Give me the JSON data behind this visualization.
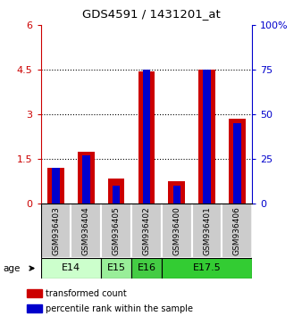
{
  "title": "GDS4591 / 1431201_at",
  "samples": [
    "GSM936403",
    "GSM936404",
    "GSM936405",
    "GSM936402",
    "GSM936400",
    "GSM936401",
    "GSM936406"
  ],
  "transformed_count": [
    1.2,
    1.75,
    0.85,
    4.45,
    0.75,
    4.5,
    2.85
  ],
  "percentile_rank_pct": [
    20,
    27,
    10,
    75,
    10,
    75,
    45
  ],
  "age_labels": [
    {
      "label": "E14",
      "start": 0,
      "end": 2,
      "color": "#ccffcc"
    },
    {
      "label": "E15",
      "start": 2,
      "end": 3,
      "color": "#99ee99"
    },
    {
      "label": "E16",
      "start": 3,
      "end": 4,
      "color": "#44cc44"
    },
    {
      "label": "E17.5",
      "start": 4,
      "end": 7,
      "color": "#33cc33"
    }
  ],
  "ylim_left": [
    0,
    6
  ],
  "ylim_right": [
    0,
    100
  ],
  "yticks_left": [
    0,
    1.5,
    3,
    4.5,
    6
  ],
  "yticks_right": [
    0,
    25,
    50,
    75,
    100
  ],
  "bar_color_red": "#cc0000",
  "bar_color_blue": "#0000cc",
  "red_bar_width": 0.55,
  "blue_bar_width": 0.25,
  "sample_bg_color": "#cccccc",
  "legend_red_label": "transformed count",
  "legend_blue_label": "percentile rank within the sample",
  "age_arrow_label": "age"
}
